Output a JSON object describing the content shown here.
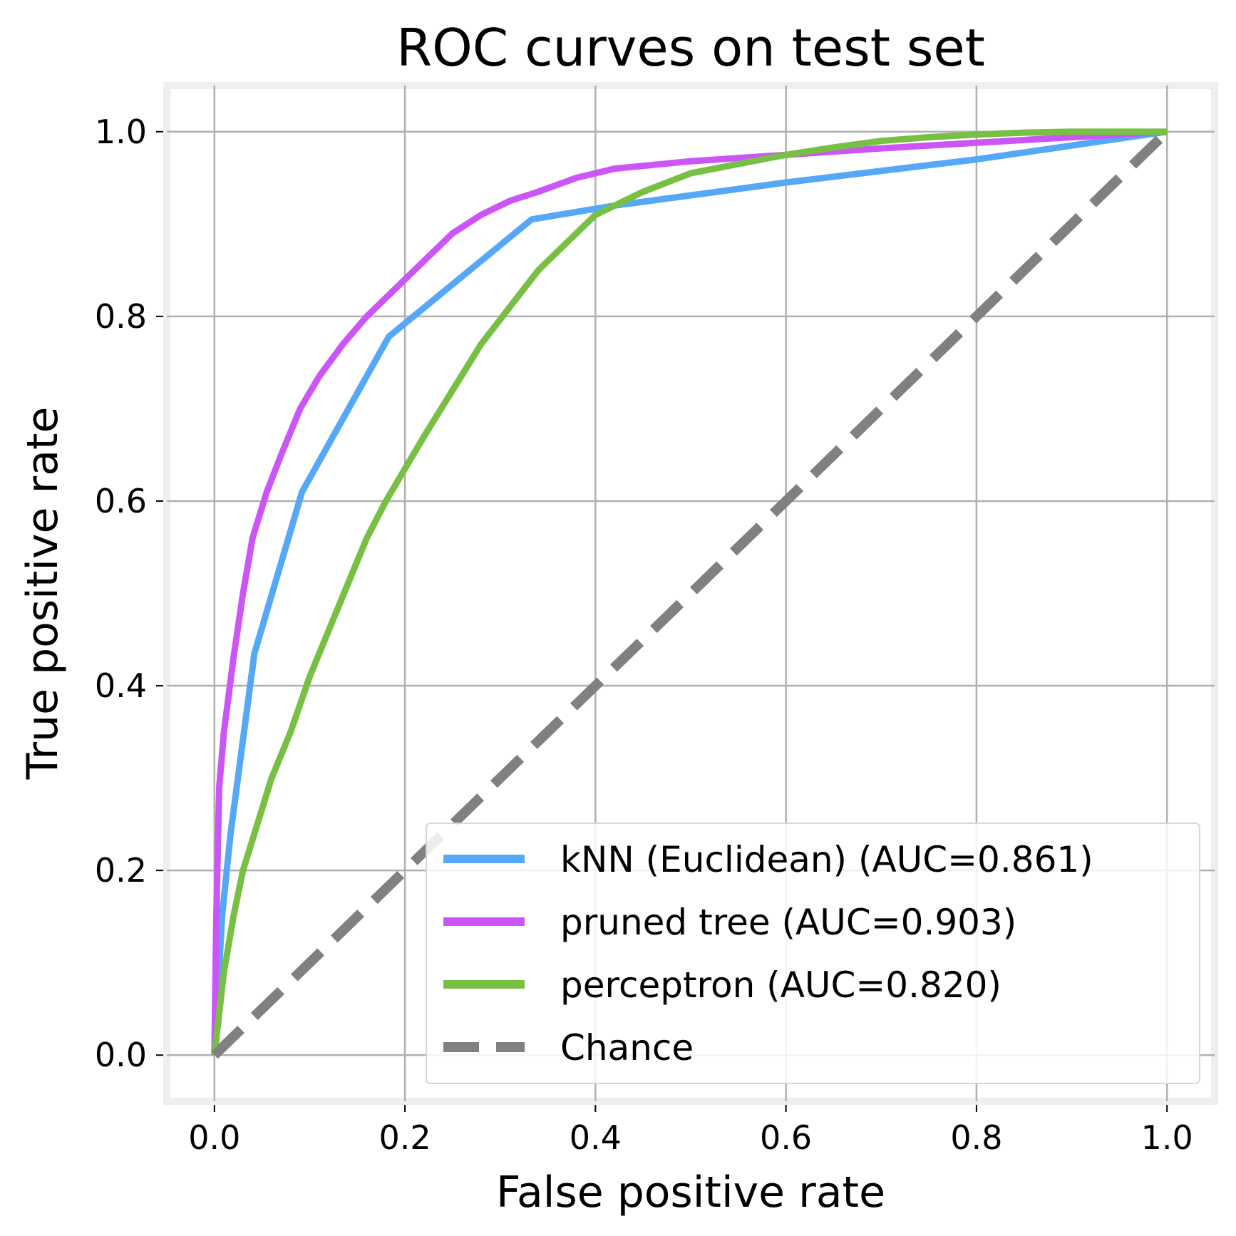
{
  "chart_data": {
    "type": "line",
    "title": "ROC curves on test set",
    "xlabel": "False positive rate",
    "ylabel": "True positive rate",
    "xlim": [
      -0.05,
      1.05
    ],
    "ylim": [
      -0.05,
      1.05
    ],
    "xticks": [
      "0.0",
      "0.2",
      "0.4",
      "0.6",
      "0.8",
      "1.0"
    ],
    "yticks": [
      "0.0",
      "0.2",
      "0.4",
      "0.6",
      "0.8",
      "1.0"
    ],
    "grid": true,
    "legend_position": "lower right",
    "series": [
      {
        "name": "kNN (Euclidean) (AUC=0.861)",
        "color": "#55a8f8",
        "dash": "solid",
        "x": [
          0.0,
          0.008,
          0.017,
          0.042,
          0.092,
          0.183,
          0.333,
          0.42,
          0.6,
          0.8,
          1.0
        ],
        "y": [
          0.0,
          0.15,
          0.24,
          0.435,
          0.61,
          0.778,
          0.905,
          0.92,
          0.945,
          0.97,
          1.0
        ]
      },
      {
        "name": "pruned tree (AUC=0.903)",
        "color": "#cc55f8",
        "dash": "solid",
        "x": [
          0.0,
          0.002,
          0.005,
          0.01,
          0.02,
          0.03,
          0.04,
          0.055,
          0.07,
          0.09,
          0.11,
          0.135,
          0.16,
          0.19,
          0.22,
          0.25,
          0.28,
          0.31,
          0.34,
          0.38,
          0.42,
          0.5,
          0.6,
          0.7,
          0.8,
          0.9,
          1.0
        ],
        "y": [
          0.0,
          0.15,
          0.29,
          0.35,
          0.43,
          0.5,
          0.56,
          0.61,
          0.65,
          0.7,
          0.735,
          0.77,
          0.8,
          0.83,
          0.86,
          0.89,
          0.91,
          0.925,
          0.935,
          0.95,
          0.96,
          0.968,
          0.975,
          0.982,
          0.988,
          0.994,
          1.0
        ]
      },
      {
        "name": "perceptron (AUC=0.820)",
        "color": "#77c044",
        "dash": "solid",
        "x": [
          0.0,
          0.01,
          0.02,
          0.03,
          0.045,
          0.06,
          0.08,
          0.1,
          0.12,
          0.14,
          0.16,
          0.18,
          0.2,
          0.22,
          0.25,
          0.28,
          0.31,
          0.34,
          0.37,
          0.4,
          0.45,
          0.5,
          0.55,
          0.6,
          0.65,
          0.7,
          0.75,
          0.8,
          0.85,
          0.9,
          0.95,
          1.0
        ],
        "y": [
          0.0,
          0.09,
          0.15,
          0.2,
          0.25,
          0.3,
          0.35,
          0.41,
          0.46,
          0.51,
          0.56,
          0.6,
          0.635,
          0.67,
          0.72,
          0.77,
          0.81,
          0.85,
          0.88,
          0.91,
          0.935,
          0.955,
          0.965,
          0.975,
          0.983,
          0.99,
          0.994,
          0.997,
          0.999,
          1.0,
          1.0,
          1.0
        ]
      },
      {
        "name": "Chance",
        "color": "#808080",
        "dash": "dashed",
        "x": [
          0.0,
          1.0
        ],
        "y": [
          0.0,
          1.0
        ]
      }
    ]
  }
}
